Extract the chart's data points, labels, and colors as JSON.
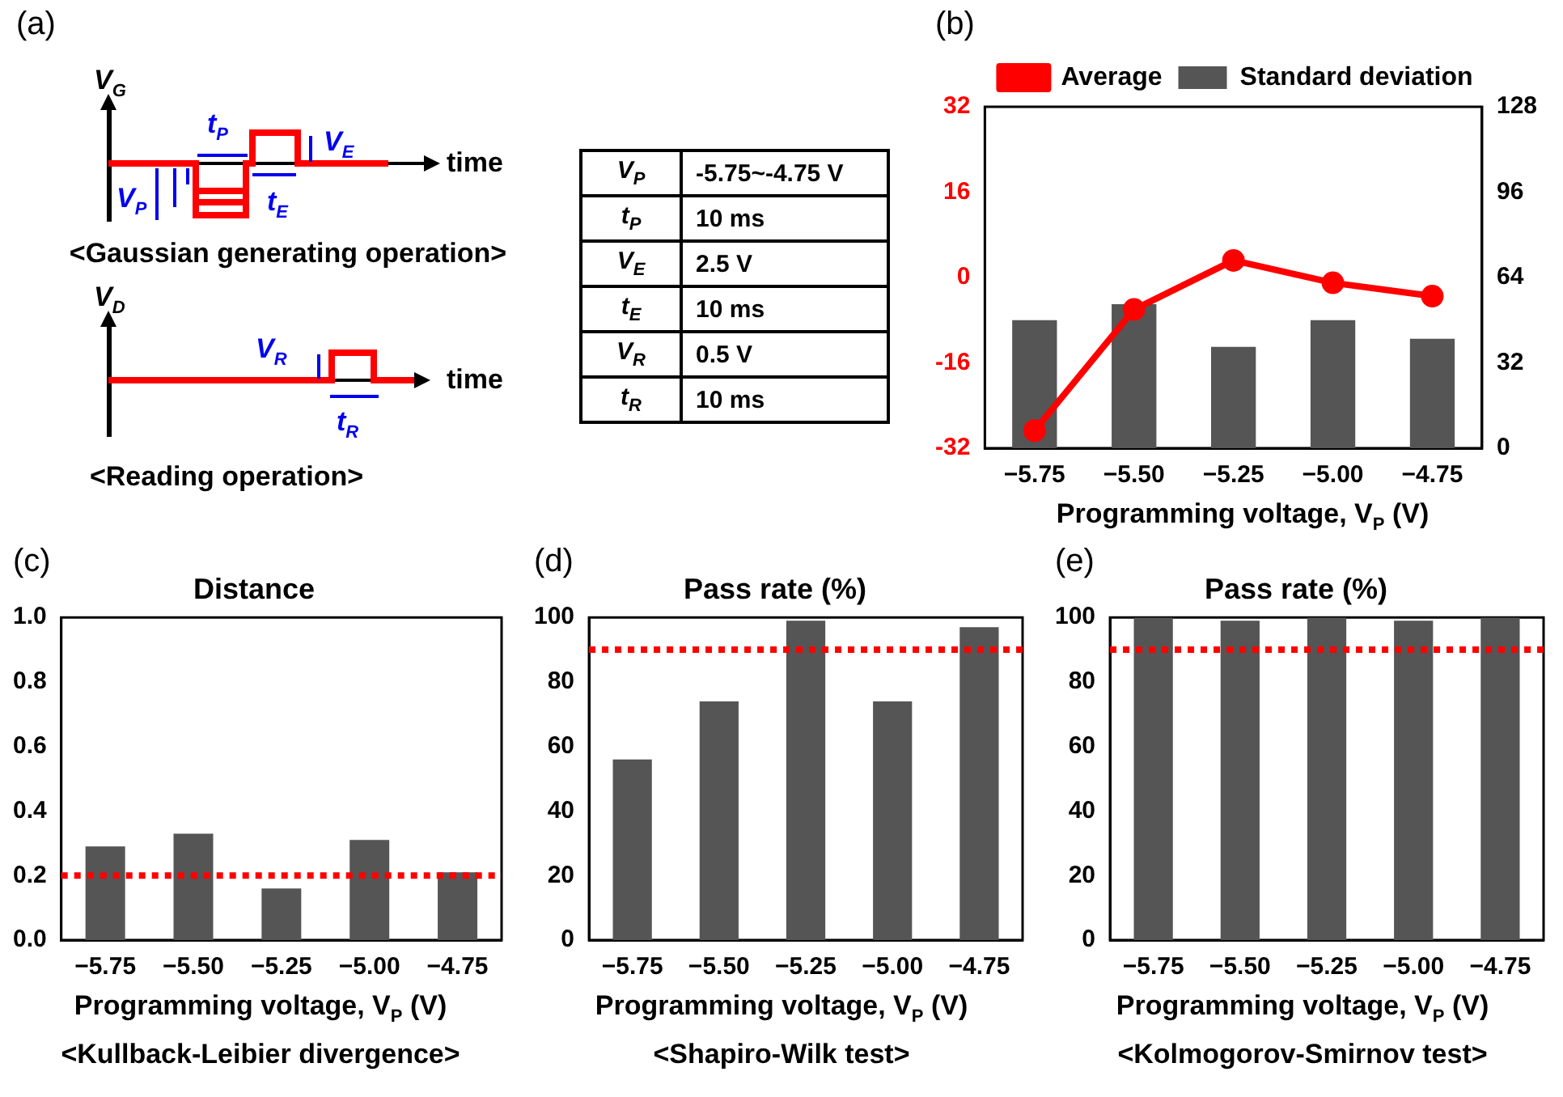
{
  "chart_data": [
    {
      "type": "other",
      "title": "(a)",
      "annotations": [
        "V$_{G}$",
        "t$_{P}$",
        "V$_{E}$",
        "time",
        "V$_{P}$",
        "t$_{E}$",
        "<Gaussian generating operation>",
        "V$_{D}$",
        "V$_{R}$",
        "time",
        "t$_{R}$",
        "<Reading operation>",
        "V$_{P}$",
        "-5.75~-4.75 V",
        "t$_{P}$",
        "10 ms",
        "V$_{E}$",
        "2.5 V",
        "t$_{E}$",
        "10 ms",
        "V$_{R}$",
        "0.5 V",
        "t$_{R}$",
        "10 ms"
      ]
    },
    {
      "type": "bar",
      "categories": [
        "−5.75",
        "−5.50",
        "−5.25",
        "−5.00",
        "−4.75"
      ],
      "xlabel": "Programming voltage, V$_{P}$ (V)",
      "annotations": [
        "(b)"
      ],
      "series": [
        {
          "name": "Average",
          "type": "line",
          "color": "#ff0000",
          "values": [
            -28.7,
            -6,
            3.2,
            -1,
            -3.5
          ]
        },
        {
          "name": "Standard deviation",
          "type": "bar",
          "axis": "y2",
          "color": "#555555",
          "values": [
            48,
            54,
            38,
            48,
            41
          ]
        }
      ],
      "ylim": [
        -32,
        32
      ],
      "yticks": [
        -32,
        -16,
        0,
        16,
        32
      ],
      "y2lim": [
        0,
        128
      ],
      "y2ticks": [
        0,
        32,
        64,
        96,
        128
      ],
      "legend": "top",
      "marker": "circle"
    },
    {
      "type": "bar",
      "title": "Distance",
      "categories": [
        "−5.75",
        "−5.50",
        "−5.25",
        "−5.00",
        "−4.75"
      ],
      "xlabel": "Programming voltage, V$_{P}$ (V)",
      "annotations": [
        "(c)",
        "<Kullback-Leibier divergence>"
      ],
      "values": [
        0.29,
        0.33,
        0.16,
        0.31,
        0.21
      ],
      "color": "#555555",
      "ylim": [
        0,
        1
      ],
      "yticks": [
        {
          "value": 0,
          "label": "0.0"
        },
        0.2,
        0.4,
        0.6,
        0.8,
        {
          "value": 1,
          "label": "1.0"
        }
      ],
      "ref_lines": [
        {
          "axis": "y",
          "value": 0.2,
          "color": "#ff0000",
          "line_style": "dotted"
        }
      ]
    },
    {
      "type": "bar",
      "title": "Pass rate (%)",
      "categories": [
        "−5.75",
        "−5.50",
        "−5.25",
        "−5.00",
        "−4.75"
      ],
      "xlabel": "Programming voltage, V$_{P}$ (V)",
      "annotations": [
        "(d)",
        "<Shapiro-Wilk test>"
      ],
      "values": [
        56,
        74,
        99,
        74,
        97
      ],
      "color": "#555555",
      "ylim": [
        0,
        100
      ],
      "yticks": [
        0,
        20,
        40,
        60,
        80,
        100
      ],
      "ref_lines": [
        {
          "axis": "y",
          "value": 90,
          "color": "#ff0000",
          "line_style": "dotted"
        }
      ]
    },
    {
      "type": "bar",
      "title": "Pass rate (%)",
      "categories": [
        "−5.75",
        "−5.50",
        "−5.25",
        "−5.00",
        "−4.75"
      ],
      "xlabel": "Programming voltage, V$_{P}$ (V)",
      "annotations": [
        "(e)",
        "<Kolmogorov-Smirnov test>"
      ],
      "values": [
        100,
        99,
        100,
        99,
        100
      ],
      "color": "#555555",
      "ylim": [
        0,
        100
      ],
      "yticks": [
        0,
        20,
        40,
        60,
        80,
        100
      ],
      "ref_lines": [
        {
          "axis": "y",
          "value": 90,
          "color": "#ff0000",
          "line_style": "dotted"
        }
      ]
    }
  ]
}
